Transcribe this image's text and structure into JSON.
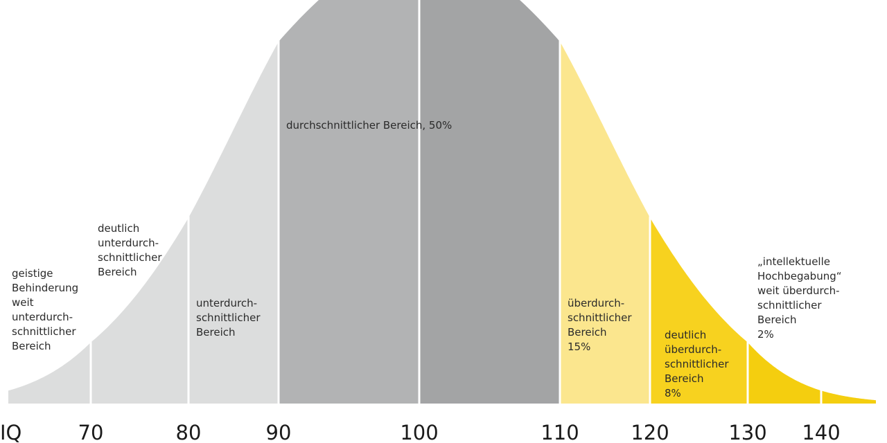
{
  "chart_data": {
    "type": "area",
    "title": "",
    "xlabel": "IQ",
    "ylabel": "",
    "xlim": [
      60,
      147
    ],
    "distribution": {
      "mean": 100,
      "sd": 15
    },
    "tick_values": [
      70,
      80,
      90,
      100,
      110,
      120,
      130,
      140
    ],
    "tick_labels": [
      "70",
      "80",
      "90",
      "100",
      "110",
      "120",
      "130",
      "140"
    ],
    "colors": {
      "light_gray": "#dcdddd",
      "mid_gray": "#b2b3b4",
      "dark_gray": "#a3a4a5",
      "pale_yellow": "#fbe68e",
      "yellow": "#f7d21f",
      "deep_yellow": "#f4ce0f",
      "separator": "#ffffff",
      "text": "#2a2a2a"
    },
    "bands": [
      {
        "from": 60,
        "to": 70,
        "color": "light_gray",
        "label": [
          "geistige",
          "Behinderung",
          "weit",
          "unterdurch-",
          "schnittlicher",
          "Bereich"
        ]
      },
      {
        "from": 70,
        "to": 80,
        "color": "light_gray",
        "label": [
          "deutlich",
          "unterdurch-",
          "schnittlicher",
          "Bereich"
        ]
      },
      {
        "from": 80,
        "to": 90,
        "color": "light_gray",
        "label": [
          "unterdurch-",
          "schnittlicher",
          "Bereich"
        ]
      },
      {
        "from": 90,
        "to": 100,
        "color": "mid_gray",
        "label": [
          "durchschnittlicher Bereich, 50%"
        ]
      },
      {
        "from": 100,
        "to": 110,
        "color": "dark_gray",
        "label": []
      },
      {
        "from": 110,
        "to": 120,
        "color": "pale_yellow",
        "label": [
          "überdurch-",
          "schnittlicher",
          "Bereich",
          "15%"
        ]
      },
      {
        "from": 120,
        "to": 130,
        "color": "yellow",
        "label": [
          "deutlich",
          "überdurch-",
          "schnittlicher",
          "Bereich",
          "8%"
        ]
      },
      {
        "from": 130,
        "to": 140,
        "color": "deep_yellow",
        "label": [
          "„intellektuelle",
          "Hochbegabung“",
          "weit überdurch-",
          "schnittlicher",
          "Bereich",
          "2%"
        ]
      },
      {
        "from": 140,
        "to": 147,
        "color": "deep_yellow",
        "label": []
      }
    ]
  }
}
